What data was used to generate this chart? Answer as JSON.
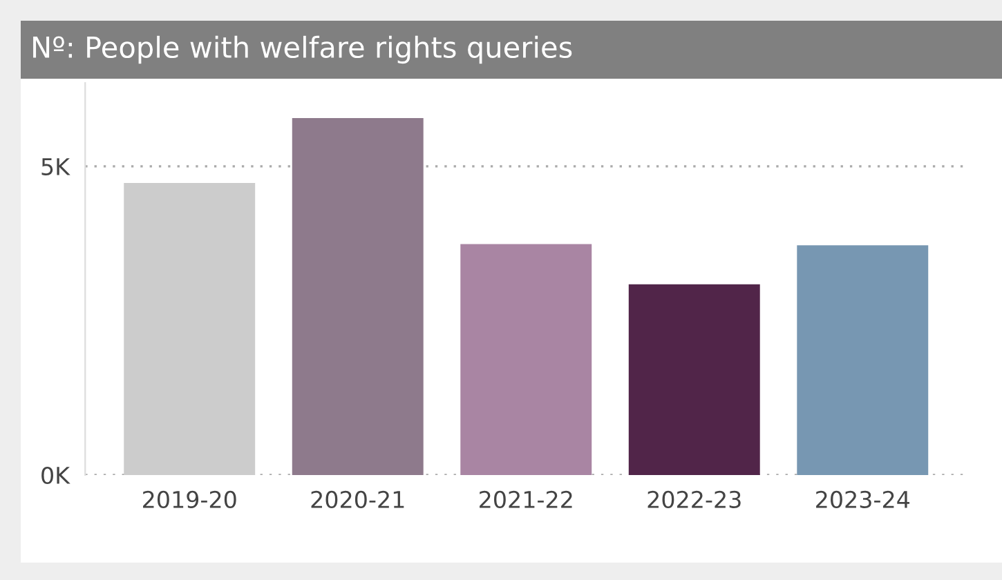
{
  "chart_data": {
    "type": "bar",
    "title": "Nº: People with welfare rights queries",
    "categories": [
      "2019-20",
      "2020-21",
      "2021-22",
      "2022-23",
      "2023-24"
    ],
    "values": [
      4.73,
      5.78,
      3.74,
      3.09,
      3.72
    ],
    "colors": [
      "#cccccc",
      "#8e7a8c",
      "#a985a3",
      "#512549",
      "#7797b2"
    ],
    "ylim": [
      0,
      6.35
    ],
    "yticks": [
      {
        "value": 0,
        "label": "0K"
      },
      {
        "value": 5,
        "label": "5K"
      }
    ],
    "grid": "y",
    "legend": false
  }
}
